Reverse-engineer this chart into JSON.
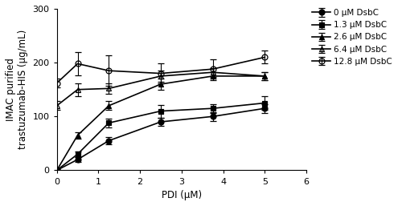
{
  "x_values": [
    0,
    0.5,
    1.25,
    2.5,
    3.75,
    5.0
  ],
  "series": [
    {
      "label": "0 μM DsbC",
      "y": [
        0,
        20,
        55,
        90,
        100,
        115
      ],
      "yerr": [
        0,
        4,
        6,
        8,
        8,
        8
      ],
      "marker": "o",
      "fillstyle": "full",
      "color": "#000000"
    },
    {
      "label": "1.3 μM DsbC",
      "y": [
        0,
        30,
        88,
        110,
        115,
        125
      ],
      "yerr": [
        0,
        5,
        8,
        12,
        8,
        12
      ],
      "marker": "s",
      "fillstyle": "full",
      "color": "#000000"
    },
    {
      "label": "2.6 μM DsbC",
      "y": [
        0,
        65,
        120,
        160,
        175,
        175
      ],
      "yerr": [
        0,
        6,
        8,
        10,
        8,
        8
      ],
      "marker": "^",
      "fillstyle": "full",
      "color": "#000000"
    },
    {
      "label": "6.4 μM DsbC",
      "y": [
        120,
        150,
        152,
        175,
        182,
        175
      ],
      "yerr": [
        8,
        12,
        10,
        10,
        8,
        8
      ],
      "marker": "^",
      "fillstyle": "none",
      "color": "#000000"
    },
    {
      "label": "12.8 μM DsbC",
      "y": [
        162,
        198,
        185,
        180,
        188,
        210
      ],
      "yerr": [
        8,
        22,
        28,
        18,
        18,
        12
      ],
      "marker": "o",
      "fillstyle": "none",
      "color": "#000000"
    }
  ],
  "xlabel": "PDI (μM)",
  "ylabel": "IMAC purified\ntrastuzumab-HIS (μg/mL)",
  "xlim": [
    0,
    6
  ],
  "ylim": [
    0,
    300
  ],
  "yticks": [
    0,
    100,
    200,
    300
  ],
  "xticks": [
    0,
    1,
    2,
    3,
    4,
    5,
    6
  ],
  "legend_fontsize": 7.5,
  "axis_fontsize": 8.5,
  "tick_fontsize": 8,
  "linewidth": 1.2,
  "markersize": 5,
  "capsize": 3
}
